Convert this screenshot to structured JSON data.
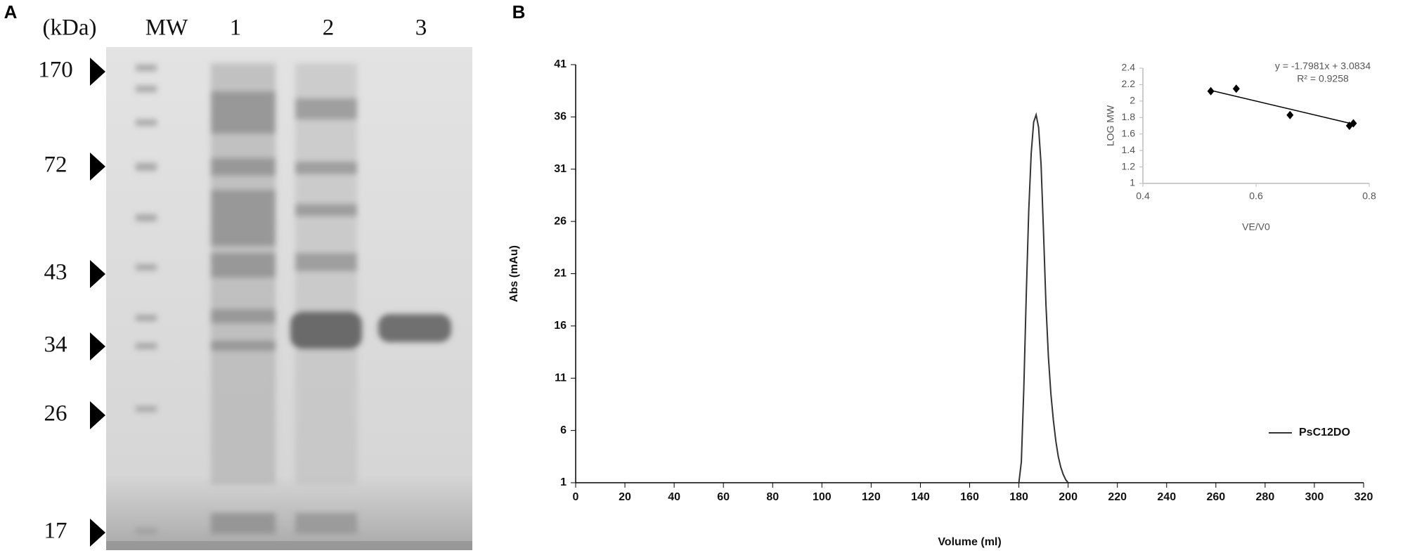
{
  "panel_a": {
    "label": "A",
    "unit": "(kDa)",
    "lanes": [
      "MW",
      "1",
      "2",
      "3"
    ],
    "markers": [
      170,
      72,
      43,
      34,
      26,
      17
    ]
  },
  "chart_data": [
    {
      "type": "line",
      "panel_label": "B",
      "xlabel": "Volume (ml)",
      "ylabel": "Abs (mAu)",
      "x": [
        180,
        181,
        182,
        183,
        184,
        185,
        186,
        187,
        188,
        189,
        190,
        191,
        192,
        193,
        194,
        195,
        196,
        197,
        198,
        199,
        200
      ],
      "series": [
        {
          "name": "PsC12DO",
          "color": "#333333",
          "values": [
            1,
            3,
            10,
            19,
            27,
            32.5,
            35.5,
            36.2,
            35,
            31.5,
            25,
            18,
            13,
            9.5,
            7,
            5,
            3.5,
            2.5,
            1.8,
            1.3,
            1
          ]
        }
      ],
      "xlim": [
        0,
        320
      ],
      "xticks": [
        0,
        20,
        40,
        60,
        80,
        100,
        120,
        140,
        160,
        180,
        200,
        220,
        240,
        260,
        280,
        300,
        320
      ],
      "ylim": [
        1,
        41
      ],
      "yticks": [
        1,
        6,
        11,
        16,
        21,
        26,
        31,
        36,
        41
      ],
      "grid": false,
      "legend": "right"
    },
    {
      "type": "scatter",
      "xlabel": "VE/V0",
      "ylabel": "LOG MW",
      "x": [
        0.52,
        0.565,
        0.66,
        0.765,
        0.772
      ],
      "series": [
        {
          "color": "#000000",
          "values": [
            2.12,
            2.15,
            1.83,
            1.7,
            1.73
          ]
        }
      ],
      "trendline": {
        "x": [
          0.52,
          0.772
        ],
        "y": [
          2.13,
          1.72
        ]
      },
      "annotations": [
        "y = -1.7981x + 3.0834",
        "R² = 0.9258"
      ],
      "xlim": [
        0.4,
        0.8
      ],
      "xticks": [
        0.4,
        0.6,
        0.8
      ],
      "ylim": [
        1,
        2.4
      ],
      "yticks": [
        1,
        1.2,
        1.4,
        1.6,
        1.8,
        2,
        2.2,
        2.4
      ],
      "grid": false
    }
  ]
}
